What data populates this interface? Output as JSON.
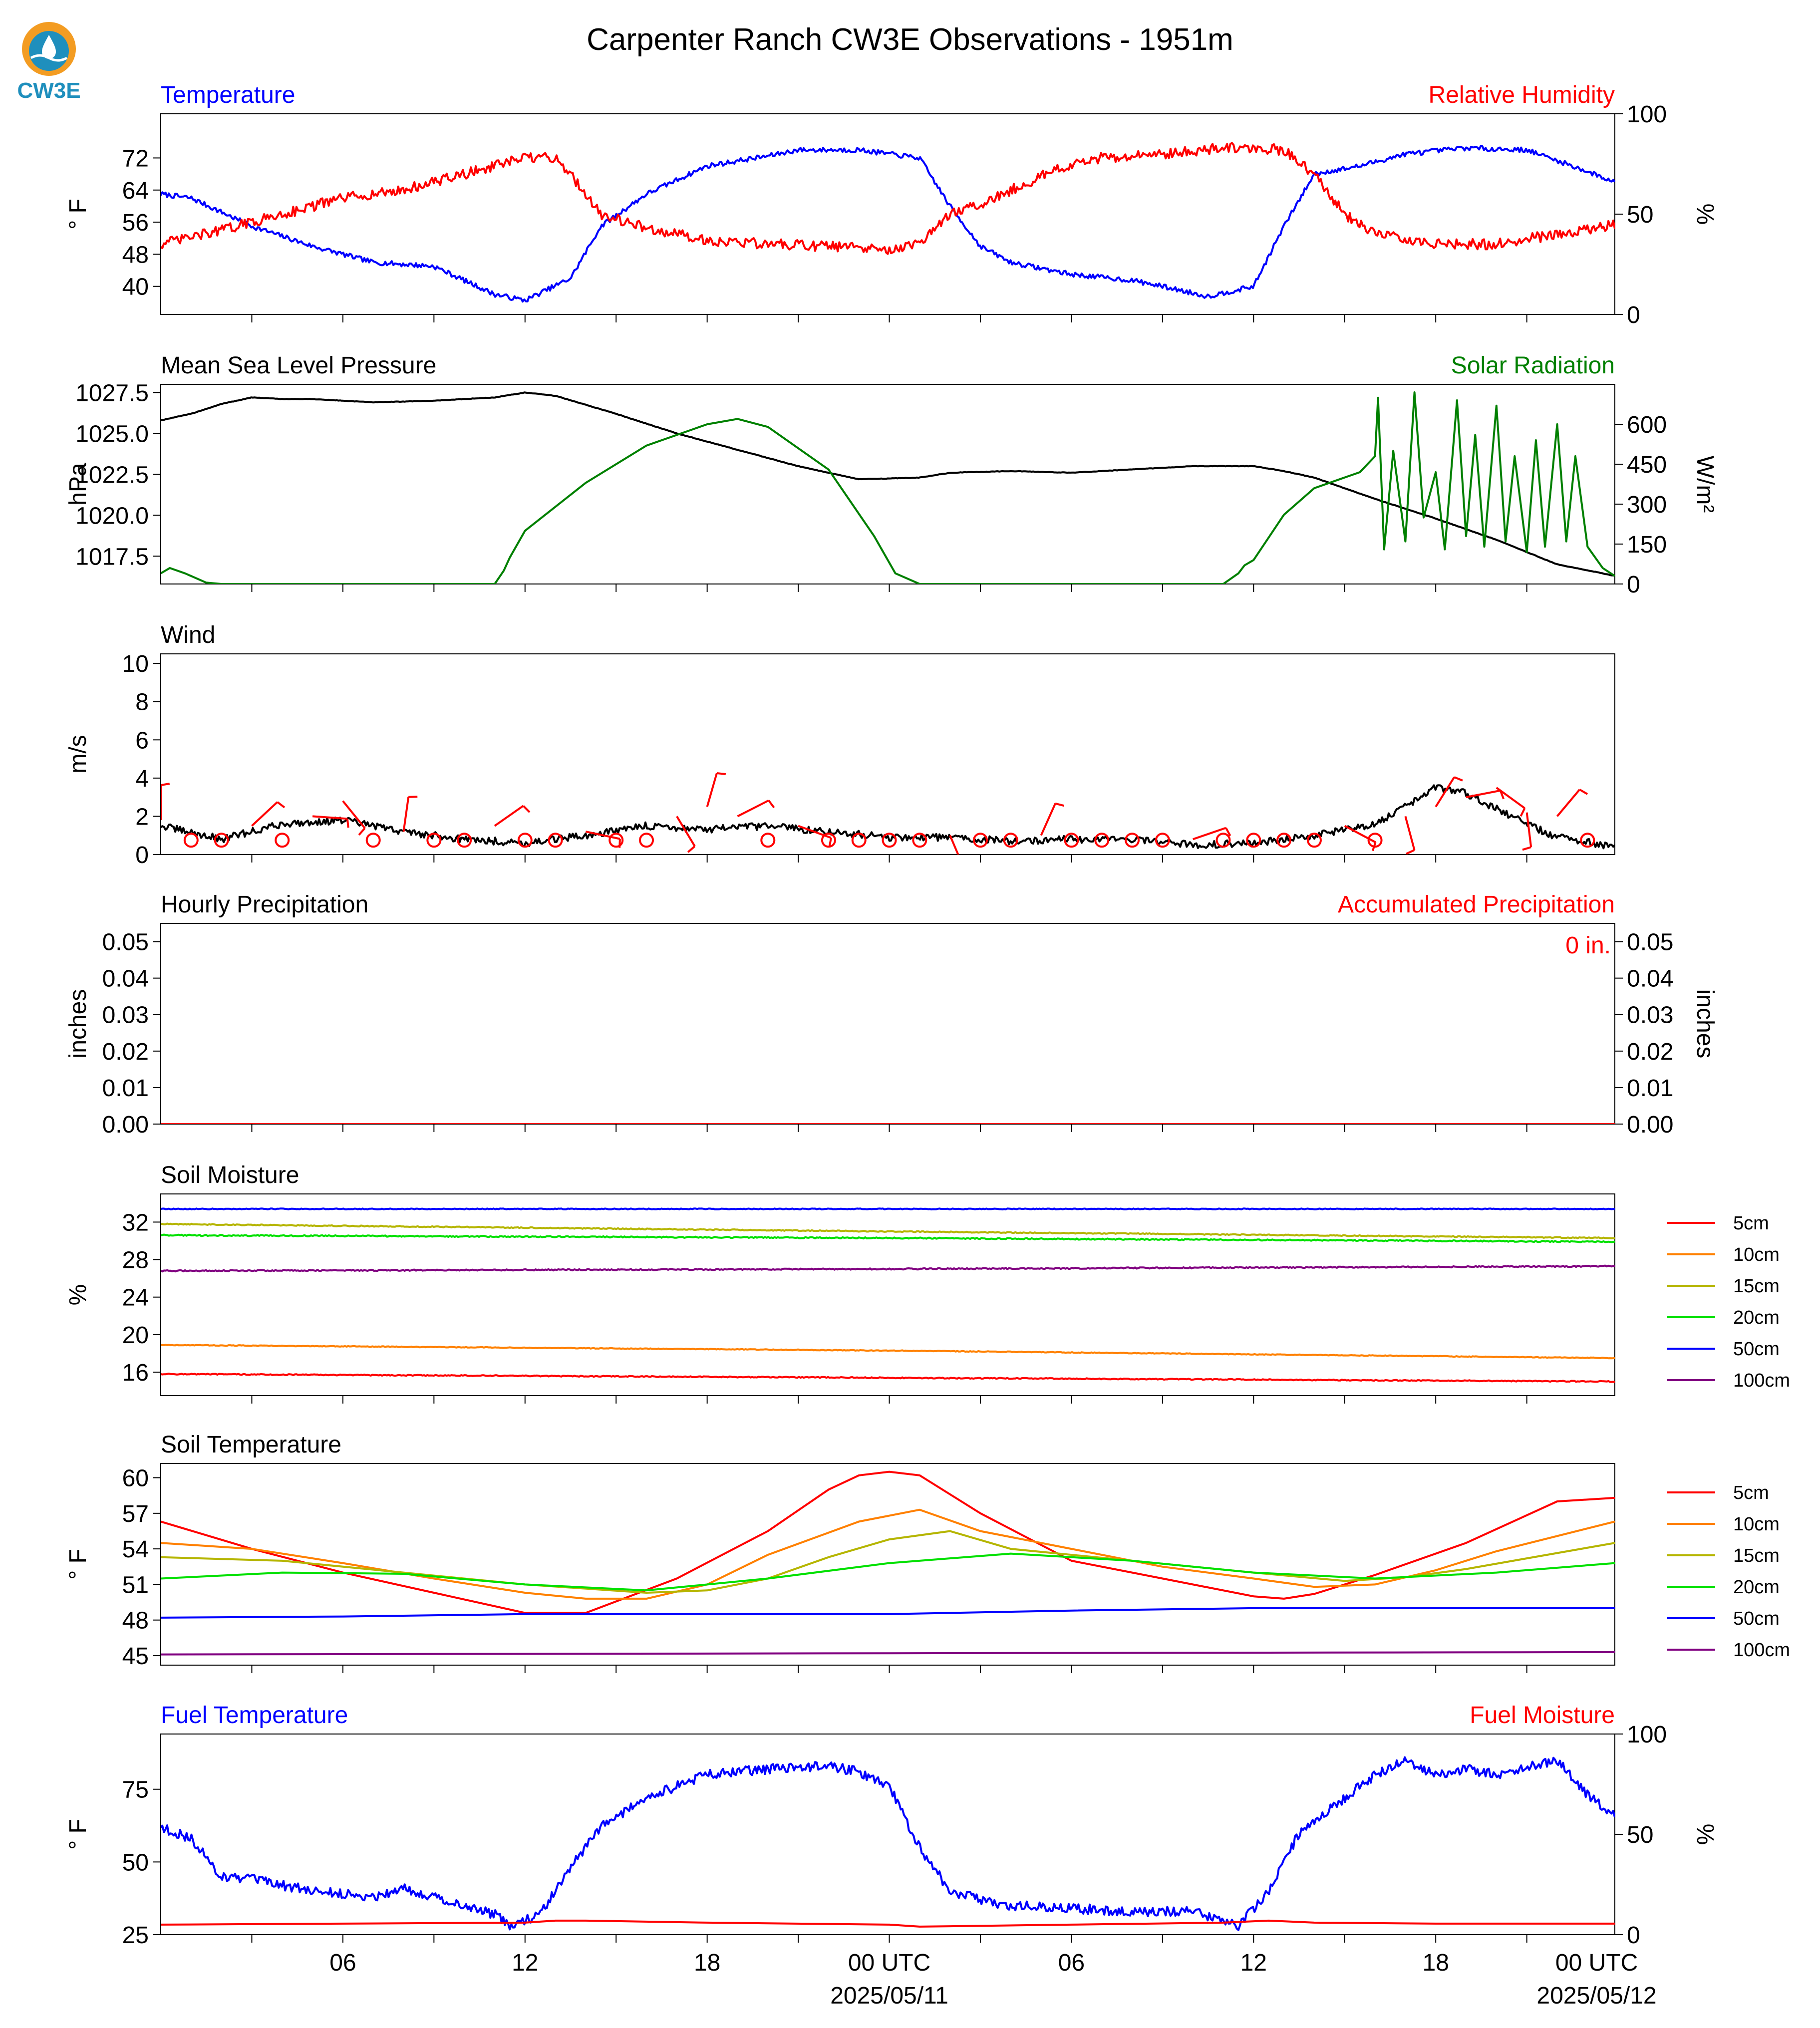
{
  "page": {
    "title": "Carpenter Ranch CW3E Observations - 1951m",
    "logo_text": "CW3E",
    "date_labels": [
      "2025/05/11",
      "2025/05/12"
    ]
  },
  "colors": {
    "blue": "#0000ff",
    "red": "#ff0000",
    "green": "#008000",
    "black": "#000000",
    "logo_orange": "#f39c22",
    "logo_teal": "#1f8fbd"
  },
  "chart_data": [
    {
      "id": "temp_rh",
      "type": "line",
      "title_left": "Temperature",
      "title_right": "Relative Humidity",
      "ylabel": "° F",
      "ylabel_right": "%",
      "ylim": [
        33,
        83
      ],
      "ylim_right": [
        0,
        100
      ],
      "yticks": [
        "40",
        "48",
        "56",
        "64",
        "72"
      ],
      "yticks_right": [
        "0",
        "50",
        "100"
      ],
      "series": [
        {
          "name": "",
          "axis": "left",
          "color": "#0000ff",
          "noise": 0.6,
          "x": [
            0,
            1,
            3,
            5,
            7,
            9,
            11,
            12,
            13.5,
            14.5,
            16,
            18,
            20,
            21,
            23,
            25,
            26,
            27,
            28,
            30,
            32,
            33,
            34.5,
            36,
            37,
            38,
            39.5,
            41,
            43,
            45,
            46.5,
            47.9
          ],
          "y": [
            63,
            62,
            55,
            50,
            46,
            45,
            38,
            36.5,
            42,
            55,
            63,
            70,
            72.5,
            74,
            74,
            72,
            60,
            50,
            46,
            43,
            41.5,
            40,
            37.5,
            40,
            55,
            68,
            70,
            73,
            74.5,
            74,
            70,
            66
          ]
        },
        {
          "name": "",
          "axis": "right",
          "color": "#ff0000",
          "noise": 1.3,
          "x": [
            0,
            2,
            4,
            6,
            8,
            10,
            12,
            13,
            13.5,
            14.5,
            16,
            18,
            20,
            22,
            24,
            25,
            26,
            27,
            28,
            29.5,
            31,
            33,
            35,
            36,
            37,
            38,
            39,
            40,
            42,
            44,
            46,
            47.9
          ],
          "y": [
            35,
            42,
            50,
            58,
            62,
            70,
            78,
            78,
            70,
            50,
            43,
            37,
            35,
            34,
            32,
            35,
            50,
            55,
            62,
            72,
            78,
            80,
            83,
            83,
            82,
            70,
            50,
            40,
            35,
            35,
            40,
            45
          ]
        }
      ]
    },
    {
      "id": "pressure_solar",
      "type": "line",
      "title_left": "Mean Sea Level Pressure",
      "title_right": "Solar Radiation",
      "ylabel": "hPa",
      "ylabel_right": "W/m²",
      "ylim": [
        1015.8,
        1028.0
      ],
      "ylim_right": [
        0,
        750
      ],
      "yticks": [
        "1017.5",
        "1020.0",
        "1022.5",
        "1025.0",
        "1027.5"
      ],
      "yticks_right": [
        "0",
        "150",
        "300",
        "450",
        "600"
      ],
      "series": [
        {
          "name": "",
          "axis": "left",
          "color": "#000000",
          "noise": 0.05,
          "x": [
            0,
            1,
            2,
            3,
            4,
            5,
            7,
            9,
            11,
            12,
            13,
            15,
            17,
            19,
            21,
            23,
            25,
            26,
            28,
            30,
            32,
            34,
            36,
            37,
            38,
            40,
            42,
            44,
            46,
            47.9
          ],
          "y": [
            1025.8,
            1026.2,
            1026.8,
            1027.2,
            1027.1,
            1027.1,
            1026.9,
            1027.0,
            1027.2,
            1027.5,
            1027.3,
            1026.2,
            1025.0,
            1024.0,
            1023.0,
            1022.2,
            1022.3,
            1022.6,
            1022.7,
            1022.6,
            1022.8,
            1023.0,
            1023.0,
            1022.7,
            1022.3,
            1021.0,
            1019.8,
            1018.5,
            1017.0,
            1016.3
          ]
        },
        {
          "name": "",
          "axis": "right",
          "color": "#008000",
          "noise": 0,
          "x": [
            0,
            0.3,
            0.8,
            1.5,
            2,
            11,
            11.3,
            11.5,
            12,
            14,
            16,
            18,
            19,
            20,
            22,
            23.5,
            24.2,
            25,
            35,
            35.5,
            35.7,
            36,
            37,
            38,
            39.5,
            40,
            40.1,
            40.3,
            40.6,
            41,
            41.3,
            41.6,
            42,
            42.3,
            42.7,
            43,
            43.3,
            43.6,
            44,
            44.3,
            44.6,
            45,
            45.3,
            45.6,
            46,
            46.3,
            46.6,
            47,
            47.5,
            47.9
          ],
          "y": [
            40,
            60,
            40,
            5,
            0,
            0,
            50,
            100,
            200,
            380,
            520,
            600,
            620,
            590,
            430,
            180,
            40,
            0,
            0,
            40,
            70,
            90,
            260,
            360,
            420,
            480,
            700,
            130,
            500,
            160,
            720,
            250,
            420,
            130,
            690,
            180,
            560,
            140,
            670,
            160,
            480,
            120,
            540,
            140,
            600,
            160,
            480,
            140,
            60,
            30
          ]
        }
      ]
    },
    {
      "id": "wind",
      "type": "line",
      "title_left": "Wind",
      "title_right": "",
      "ylabel": "m/s",
      "ylabel_right": "",
      "ylim": [
        0,
        10.5
      ],
      "yticks": [
        "0",
        "2",
        "4",
        "6",
        "8",
        "10"
      ],
      "series": [
        {
          "name": "",
          "axis": "left",
          "color": "#000000",
          "noise": 0.9,
          "floor": 0,
          "x": [
            0,
            2,
            4,
            6,
            8,
            10,
            12,
            14,
            16,
            18,
            20,
            22,
            24,
            26,
            28,
            30,
            32,
            34,
            36,
            38,
            40,
            41,
            42,
            43,
            44,
            45,
            46,
            47.9
          ],
          "y": [
            1.5,
            0.8,
            1.6,
            1.8,
            1.2,
            0.8,
            0.6,
            1.0,
            1.5,
            1.3,
            1.5,
            1.2,
            0.9,
            0.9,
            0.7,
            0.8,
            0.8,
            0.5,
            0.6,
            1.0,
            1.6,
            2.5,
            3.5,
            3.2,
            2.4,
            1.6,
            0.9,
            0.4
          ]
        }
      ],
      "barbs": {
        "color": "#ff0000",
        "calm_circles_x": [
          1,
          2,
          4,
          7,
          9,
          10,
          12,
          13,
          15,
          16,
          20,
          22,
          23,
          24,
          25,
          27,
          28,
          30,
          31,
          32,
          33,
          35,
          36,
          37,
          38,
          40,
          47
        ],
        "barb_x": [
          0,
          3,
          5,
          6,
          8,
          11,
          14,
          17,
          18,
          19,
          21,
          26,
          29,
          34,
          39,
          41,
          42,
          43,
          44,
          45,
          46
        ],
        "barb_speed": [
          1.8,
          1.5,
          2.0,
          2.8,
          1.2,
          1.5,
          1.2,
          2.0,
          2.5,
          2.0,
          1.5,
          1.0,
          1.0,
          0.8,
          1.5,
          2.0,
          2.5,
          3.0,
          3.5,
          2.2,
          2.0
        ]
      }
    },
    {
      "id": "precip",
      "type": "line",
      "title_left": "Hourly Precipitation",
      "title_right": "Accumulated Precipitation",
      "ylabel": "inches",
      "ylabel_right": "inches",
      "ylim": [
        0,
        0.055
      ],
      "ylim_right": [
        0,
        0.055
      ],
      "yticks": [
        "0.00",
        "0.01",
        "0.02",
        "0.03",
        "0.04",
        "0.05"
      ],
      "yticks_right": [
        "0.00",
        "0.01",
        "0.02",
        "0.03",
        "0.04",
        "0.05"
      ],
      "annotation": "0 in.",
      "series": [
        {
          "name": "",
          "axis": "left",
          "color": "#ff0000",
          "noise": 0,
          "x": [
            0,
            47.9
          ],
          "y": [
            0,
            0
          ]
        }
      ]
    },
    {
      "id": "soil_moisture",
      "type": "line",
      "title_left": "Soil Moisture",
      "title_right": "",
      "ylabel": "%",
      "ylabel_right": "",
      "ylim": [
        13.5,
        35.0
      ],
      "yticks": [
        "16",
        "20",
        "24",
        "28",
        "32"
      ],
      "legend": "right",
      "series": [
        {
          "name": "5cm",
          "axis": "left",
          "color": "#ff0000",
          "noise": 0.12,
          "x": [
            0,
            24,
            47.9
          ],
          "y": [
            15.8,
            15.4,
            15.0
          ]
        },
        {
          "name": "10cm",
          "axis": "left",
          "color": "#ff8000",
          "noise": 0.08,
          "x": [
            0,
            24,
            47.9
          ],
          "y": [
            18.9,
            18.3,
            17.5
          ]
        },
        {
          "name": "15cm",
          "axis": "left",
          "color": "#b5b500",
          "noise": 0.12,
          "x": [
            0,
            24,
            47.9
          ],
          "y": [
            31.8,
            31.0,
            30.3
          ]
        },
        {
          "name": "20cm",
          "axis": "left",
          "color": "#00e000",
          "noise": 0.15,
          "x": [
            0,
            24,
            47.9
          ],
          "y": [
            30.6,
            30.3,
            29.9
          ]
        },
        {
          "name": "50cm",
          "axis": "left",
          "color": "#0000ff",
          "noise": 0.1,
          "x": [
            0,
            24,
            47.9
          ],
          "y": [
            33.4,
            33.4,
            33.4
          ]
        },
        {
          "name": "100cm",
          "axis": "left",
          "color": "#800080",
          "noise": 0.15,
          "x": [
            0,
            24,
            47.9
          ],
          "y": [
            26.8,
            27.0,
            27.3
          ]
        }
      ]
    },
    {
      "id": "soil_temperature",
      "type": "line",
      "title_left": "Soil Temperature",
      "title_right": "",
      "ylabel": "° F",
      "ylabel_right": "",
      "ylim": [
        44.2,
        61.2
      ],
      "yticks": [
        "45",
        "48",
        "51",
        "54",
        "57",
        "60"
      ],
      "legend": "right",
      "series": [
        {
          "name": "5cm",
          "axis": "left",
          "color": "#ff0000",
          "noise": 0,
          "x": [
            0,
            3,
            6,
            9,
            12,
            14,
            17,
            20,
            22,
            23,
            24,
            25,
            27,
            30,
            33,
            36,
            37,
            38,
            40,
            43,
            46,
            47.9
          ],
          "y": [
            56.3,
            54.0,
            52.0,
            50.3,
            48.6,
            48.6,
            51.5,
            55.5,
            59.0,
            60.2,
            60.5,
            60.2,
            57.0,
            53.0,
            51.5,
            50.0,
            49.8,
            50.2,
            51.8,
            54.5,
            58.0,
            58.3
          ]
        },
        {
          "name": "10cm",
          "axis": "left",
          "color": "#ff8000",
          "noise": 0,
          "x": [
            0,
            3,
            6,
            9,
            12,
            14,
            16,
            18,
            20,
            23,
            25,
            27,
            30,
            33,
            36,
            38,
            40,
            42,
            44,
            47.9
          ],
          "y": [
            54.5,
            54.0,
            52.8,
            51.5,
            50.3,
            49.8,
            49.8,
            51.0,
            53.5,
            56.3,
            57.3,
            55.5,
            54.0,
            52.5,
            51.5,
            50.8,
            51.0,
            52.2,
            53.8,
            56.3
          ]
        },
        {
          "name": "15cm",
          "axis": "left",
          "color": "#b5b500",
          "noise": 0,
          "x": [
            0,
            4,
            8,
            12,
            16,
            18,
            20,
            22,
            24,
            26,
            28,
            32,
            36,
            39,
            41,
            43,
            45,
            47.9
          ],
          "y": [
            53.3,
            53.0,
            52.0,
            51.0,
            50.3,
            50.5,
            51.5,
            53.3,
            54.8,
            55.5,
            54.0,
            53.0,
            52.0,
            51.3,
            51.6,
            52.3,
            53.2,
            54.5
          ]
        },
        {
          "name": "20cm",
          "axis": "left",
          "color": "#00e000",
          "noise": 0,
          "x": [
            0,
            4,
            8,
            12,
            16,
            20,
            24,
            28,
            32,
            36,
            40,
            44,
            47.9
          ],
          "y": [
            51.5,
            52.0,
            51.9,
            51.0,
            50.5,
            51.5,
            52.8,
            53.6,
            53.0,
            52.0,
            51.5,
            52.0,
            52.8
          ]
        },
        {
          "name": "50cm",
          "axis": "left",
          "color": "#0000ff",
          "noise": 0,
          "x": [
            0,
            6,
            12,
            18,
            24,
            30,
            36,
            42,
            47.9
          ],
          "y": [
            48.2,
            48.3,
            48.5,
            48.5,
            48.5,
            48.8,
            49.0,
            49.0,
            49.0
          ]
        },
        {
          "name": "100cm",
          "axis": "left",
          "color": "#800080",
          "noise": 0,
          "x": [
            0,
            24,
            47.9
          ],
          "y": [
            45.1,
            45.2,
            45.3
          ]
        }
      ]
    },
    {
      "id": "fuel",
      "type": "line",
      "title_left": "Fuel Temperature",
      "title_right": "Fuel Moisture",
      "ylabel": "° F",
      "ylabel_right": "%",
      "ylim": [
        25,
        94
      ],
      "ylim_right": [
        0,
        100
      ],
      "yticks": [
        "25",
        "50",
        "75"
      ],
      "yticks_right": [
        "0",
        "50",
        "100"
      ],
      "series": [
        {
          "name": "",
          "axis": "left",
          "color": "#0000ff",
          "noise": 1.2,
          "x": [
            0,
            1,
            2,
            3,
            5,
            7,
            8,
            9,
            11,
            11.5,
            12.5,
            13.5,
            14.5,
            16,
            18,
            20,
            22,
            23,
            24,
            25,
            26,
            27,
            28,
            30,
            32,
            34,
            35,
            35.5,
            36.5,
            37.5,
            39,
            40,
            41,
            42,
            43,
            44,
            45,
            46,
            47,
            47.9
          ],
          "y": [
            62,
            58,
            45,
            44,
            40,
            38,
            41,
            38,
            32,
            28,
            32,
            48,
            62,
            72,
            80,
            82,
            83,
            81,
            76,
            55,
            40,
            37,
            35,
            34,
            33,
            33,
            30,
            28,
            40,
            60,
            72,
            80,
            85,
            80,
            82,
            80,
            83,
            85,
            73,
            66
          ]
        },
        {
          "name": "",
          "axis": "right",
          "color": "#ff0000",
          "noise": 0,
          "x": [
            0,
            6,
            12,
            13,
            14,
            18,
            24,
            25,
            30,
            35,
            36.5,
            38,
            42,
            47.9
          ],
          "y": [
            5,
            5.5,
            6,
            7,
            7,
            6,
            5,
            4,
            5,
            6,
            7,
            6,
            5.5,
            5.5
          ]
        }
      ]
    }
  ],
  "x_axis": {
    "tick_labels": [
      "06",
      "12",
      "18",
      "00 UTC",
      "06",
      "12",
      "18",
      "00 UTC"
    ]
  }
}
